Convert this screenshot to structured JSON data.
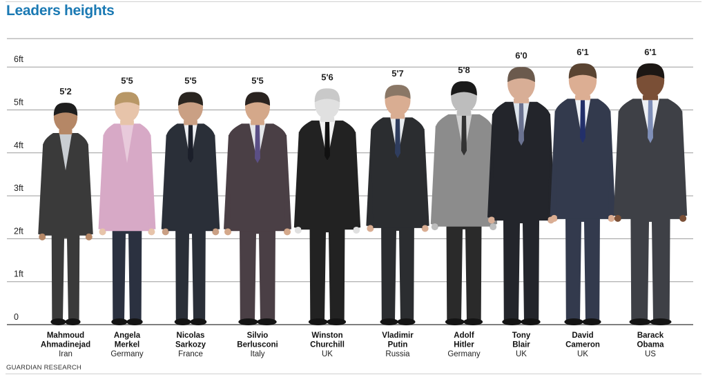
{
  "title": "Leaders heights",
  "source": "GUARDIAN RESEARCH",
  "chart_data": {
    "type": "bar",
    "title": "Leaders heights",
    "ylabel": "",
    "ylim_inches": [
      0,
      78
    ],
    "yticks": [
      "0",
      "1ft",
      "2ft",
      "3ft",
      "4ft",
      "5ft",
      "6ft"
    ],
    "grid": true,
    "categories": [
      "Mahmoud Ahmadinejad",
      "Angela Merkel",
      "Nicolas Sarkozy",
      "Silvio Berlusconi",
      "Winston Churchill",
      "Vladimir Putin",
      "Adolf Hitler",
      "Tony Blair",
      "David Cameron",
      "Barack Obama"
    ],
    "series": [
      {
        "values_inches": [
          62,
          65,
          65,
          65,
          66,
          67,
          68,
          72,
          73,
          73
        ]
      }
    ],
    "leaders": [
      {
        "name_lines": [
          "Mahmoud",
          "Ahmadinejad"
        ],
        "country": "Iran",
        "height_label": "5'2",
        "inches": 62,
        "suit": "#3a3a3a",
        "shirt": "#c9cdd2",
        "tie": "",
        "skin": "#b58766",
        "hair": "#1e1e1e"
      },
      {
        "name_lines": [
          "Angela",
          "Merkel"
        ],
        "country": "Germany",
        "height_label": "5'5",
        "inches": 65,
        "suit": "#d7a9c6",
        "shirt": "#e8cadb",
        "tie": "",
        "skin": "#e7c4aa",
        "hair": "#b89766",
        "pants": "#2b3140"
      },
      {
        "name_lines": [
          "Nicolas",
          "Sarkozy"
        ],
        "country": "France",
        "height_label": "5'5",
        "inches": 65,
        "suit": "#2a2f38",
        "shirt": "#eef0f3",
        "tie": "#1b1f2a",
        "skin": "#caa084",
        "hair": "#2a2520"
      },
      {
        "name_lines": [
          "Silvio",
          "Berlusconi"
        ],
        "country": "Italy",
        "height_label": "5'5",
        "inches": 65,
        "suit": "#4a3f45",
        "shirt": "#e5e7ea",
        "tie": "#5b4f86",
        "skin": "#d4a88a",
        "hair": "#2a2320"
      },
      {
        "name_lines": [
          "Winston",
          "Churchill"
        ],
        "country": "UK",
        "height_label": "5'6",
        "inches": 66,
        "suit": "#222222",
        "shirt": "#f2f2f2",
        "tie": "#111111",
        "skin": "#e0e0e0",
        "hair": "#c9c9c9"
      },
      {
        "name_lines": [
          "Vladimir",
          "Putin"
        ],
        "country": "Russia",
        "height_label": "5'7",
        "inches": 67,
        "suit": "#2b2d30",
        "shirt": "#e8ebee",
        "tie": "#2f3d5e",
        "skin": "#d9ad92",
        "hair": "#8a7766"
      },
      {
        "name_lines": [
          "Adolf",
          "Hitler"
        ],
        "country": "Germany",
        "height_label": "5'8",
        "inches": 68,
        "suit": "#8c8c8c",
        "shirt": "#d0d0d0",
        "tie": "#333333",
        "skin": "#bdbdbd",
        "hair": "#1a1a1a",
        "pants": "#2a2a2a"
      },
      {
        "name_lines": [
          "Tony",
          "Blair"
        ],
        "country": "UK",
        "height_label": "6'0",
        "inches": 72,
        "suit": "#23252b",
        "shirt": "#dde4ec",
        "tie": "#6a7290",
        "skin": "#d8ae96",
        "hair": "#6b5a4d"
      },
      {
        "name_lines": [
          "David",
          "Cameron"
        ],
        "country": "UK",
        "height_label": "6'1",
        "inches": 73,
        "suit": "#333a4d",
        "shirt": "#eef1f5",
        "tie": "#23306a",
        "skin": "#dcae93",
        "hair": "#5a4432"
      },
      {
        "name_lines": [
          "Barack",
          "Obama"
        ],
        "country": "US",
        "height_label": "6'1",
        "inches": 73,
        "suit": "#3e4046",
        "shirt": "#eef0f4",
        "tie": "#7f8fb8",
        "skin": "#7a4f36",
        "hair": "#1c1714"
      }
    ]
  }
}
